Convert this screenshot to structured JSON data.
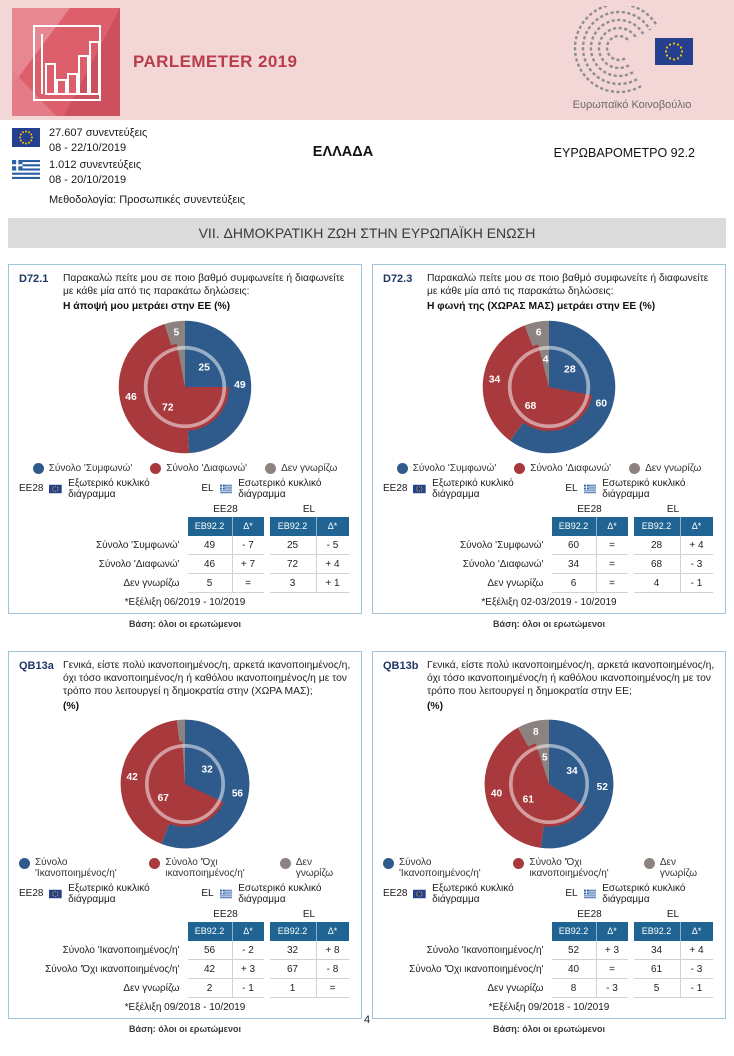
{
  "header": {
    "title": "PARLEMETER 2019",
    "ep_caption": "Ευρωπαϊκό Κοινοβούλιο"
  },
  "meta": {
    "eu_interviews": "27.607 συνεντεύξεις",
    "eu_dates": "08 - 22/10/2019",
    "country_interviews": "1.012 συνεντεύξεις",
    "country_dates": "08 - 20/10/2019",
    "methodology": "Μεθοδολογία: Προσωπικές συνεντεύξεις",
    "country": "ΕΛΛΑΔΑ",
    "survey": "ΕΥΡΩΒΑΡΟΜΕΤΡΟ 92.2"
  },
  "section_title": "VII. ΔΗΜΟΚΡΑΤΙΚΗ ΖΩΗ ΣΤΗΝ ΕΥΡΩΠΑΪΚΗ ΕΝΩΣΗ",
  "table_headers": {
    "ee28": "EE28",
    "el": "EL",
    "eb": "EB92.2",
    "delta": "Δ*"
  },
  "ring_legend": {
    "ee28": "EE28",
    "outer": "Εξωτερικό κυκλικό διάγραμμα",
    "el": "EL",
    "inner": "Εσωτερικό κυκλικό διάγραμμα"
  },
  "base_note": "Βάση: όλοι οι ερωτώμενοι",
  "page_number": "4",
  "icons": {
    "eu_flag": "eu-flag-icon",
    "greece_flag": "greece-flag-icon",
    "ep_logo": "european-parliament-logo",
    "chart_logo": "bar-chart-logo"
  },
  "colors": {
    "agree_blue": "#2e5a8c",
    "disagree_red": "#a8393c",
    "dontknow_gray": "#8c8280",
    "table_header_teal": "#1f6492",
    "panel_border": "#a0c4d8",
    "header_pink": "#f3d7d7",
    "logo_red": "#dd5f6c",
    "title_red": "#b93c4b",
    "banner_gray": "#dbdbdb"
  },
  "panels": [
    {
      "id": "D72.1",
      "question": "Παρακαλώ πείτε μου σε ποιο βαθμό συμφωνείτε ή διαφωνείτε με κάθε μία από τις παρακάτω δηλώσεις:",
      "subtitle": "Η άποψή μου μετράει στην ΕΕ  (%)",
      "legend": [
        "Σύνολο 'Συμφωνώ'",
        "Σύνολο 'Διαφωνώ'",
        "Δεν γνωρίζω"
      ],
      "rows": [
        {
          "label": "Σύνολο 'Συμφωνώ'",
          "ee28": "49",
          "ee28_delta": "- 7",
          "el": "25",
          "el_delta": "- 5"
        },
        {
          "label": "Σύνολο 'Διαφωνώ'",
          "ee28": "46",
          "ee28_delta": "+ 7",
          "el": "72",
          "el_delta": "+ 4"
        },
        {
          "label": "Δεν γνωρίζω",
          "ee28": "5",
          "ee28_delta": "=",
          "el": "3",
          "el_delta": "+ 1"
        }
      ],
      "footnote": "*Εξέλιξη 06/2019 - 10/2019"
    },
    {
      "id": "D72.3",
      "question": "Παρακαλώ πείτε μου σε ποιο βαθμό συμφωνείτε ή διαφωνείτε με κάθε μία από τις παρακάτω δηλώσεις:",
      "subtitle": "Η φωνή της (ΧΩΡΑΣ ΜΑΣ) μετράει στην ΕΕ  (%)",
      "legend": [
        "Σύνολο 'Συμφωνώ'",
        "Σύνολο 'Διαφωνώ'",
        "Δεν γνωρίζω"
      ],
      "rows": [
        {
          "label": "Σύνολο 'Συμφωνώ'",
          "ee28": "60",
          "ee28_delta": "=",
          "el": "28",
          "el_delta": "+ 4"
        },
        {
          "label": "Σύνολο 'Διαφωνώ'",
          "ee28": "34",
          "ee28_delta": "=",
          "el": "68",
          "el_delta": "- 3"
        },
        {
          "label": "Δεν γνωρίζω",
          "ee28": "6",
          "ee28_delta": "=",
          "el": "4",
          "el_delta": "- 1"
        }
      ],
      "footnote": "*Εξέλιξη 02-03/2019 - 10/2019"
    },
    {
      "id": "QB13a",
      "question": "Γενικά, είστε πολύ ικανοποιημένος/η, αρκετά ικανοποιημένος/η, όχι τόσο ικανοποιημένος/η ή καθόλου ικανοποιημένος/η με τον τρόπο που λειτουργεί η δημοκρατία στην (ΧΩΡΑ ΜΑΣ);",
      "subtitle": "(%)",
      "legend": [
        "Σύνολο 'Ικανοποιημένος/η'",
        "Σύνολο 'Όχι ικανοποιημένος/η'",
        "Δεν γνωρίζω"
      ],
      "rows": [
        {
          "label": "Σύνολο 'Ικανοποιημένος/η'",
          "ee28": "56",
          "ee28_delta": "- 2",
          "el": "32",
          "el_delta": "+ 8"
        },
        {
          "label": "Σύνολο 'Όχι ικανοποιημένος/η'",
          "ee28": "42",
          "ee28_delta": "+ 3",
          "el": "67",
          "el_delta": "- 8"
        },
        {
          "label": "Δεν γνωρίζω",
          "ee28": "2",
          "ee28_delta": "- 1",
          "el": "1",
          "el_delta": "="
        }
      ],
      "footnote": "*Εξέλιξη 09/2018 - 10/2019"
    },
    {
      "id": "QB13b",
      "question": "Γενικά, είστε πολύ ικανοποιημένος/η, αρκετά ικανοποιημένος/η, όχι τόσο ικανοποιημένος/η ή καθόλου ικανοποιημένος/η με τον τρόπο που λειτουργεί η δημοκρατία στην ΕΕ;",
      "subtitle": "(%)",
      "legend": [
        "Σύνολο 'Ικανοποιημένος/η'",
        "Σύνολο 'Όχι ικανοποιημένος/η'",
        "Δεν γνωρίζω"
      ],
      "rows": [
        {
          "label": "Σύνολο 'Ικανοποιημένος/η'",
          "ee28": "52",
          "ee28_delta": "+ 3",
          "el": "34",
          "el_delta": "+ 4"
        },
        {
          "label": "Σύνολο 'Όχι ικανοποιημένος/η'",
          "ee28": "40",
          "ee28_delta": "=",
          "el": "61",
          "el_delta": "- 3"
        },
        {
          "label": "Δεν γνωρίζω",
          "ee28": "8",
          "ee28_delta": "- 3",
          "el": "5",
          "el_delta": "- 1"
        }
      ],
      "footnote": "*Εξέλιξη 09/2018 - 10/2019"
    }
  ],
  "chart_data": [
    {
      "type": "pie",
      "panel": "D72.1",
      "title": "Η άποψή μου μετράει στην ΕΕ (%)",
      "categories": [
        "Σύνολο 'Συμφωνώ'",
        "Σύνολο 'Διαφωνώ'",
        "Δεν γνωρίζω"
      ],
      "series": [
        {
          "name": "EE28 — εξωτερικό κυκλικό διάγραμμα",
          "values": [
            49,
            46,
            5
          ]
        },
        {
          "name": "EL — εσωτερικό κυκλικό διάγραμμα",
          "values": [
            25,
            72,
            3
          ]
        }
      ],
      "colors": [
        "#2e5a8c",
        "#a8393c",
        "#8c8280"
      ],
      "legend_position": "bottom"
    },
    {
      "type": "pie",
      "panel": "D72.3",
      "title": "Η φωνή της (ΧΩΡΑΣ ΜΑΣ) μετράει στην ΕΕ (%)",
      "categories": [
        "Σύνολο 'Συμφωνώ'",
        "Σύνολο 'Διαφωνώ'",
        "Δεν γνωρίζω"
      ],
      "series": [
        {
          "name": "EE28 — εξωτερικό κυκλικό διάγραμμα",
          "values": [
            60,
            34,
            6
          ]
        },
        {
          "name": "EL — εσωτερικό κυκλικό διάγραμμα",
          "values": [
            28,
            68,
            4
          ]
        }
      ],
      "colors": [
        "#2e5a8c",
        "#a8393c",
        "#8c8280"
      ],
      "legend_position": "bottom"
    },
    {
      "type": "pie",
      "panel": "QB13a",
      "title": "Ικανοποίηση από τη λειτουργία της δημοκρατίας στην (ΧΩΡΑ ΜΑΣ) (%)",
      "categories": [
        "Σύνολο 'Ικανοποιημένος/η'",
        "Σύνολο 'Όχι ικανοποιημένος/η'",
        "Δεν γνωρίζω"
      ],
      "series": [
        {
          "name": "EE28 — εξωτερικό κυκλικό διάγραμμα",
          "values": [
            56,
            42,
            2
          ]
        },
        {
          "name": "EL — εσωτερικό κυκλικό διάγραμμα",
          "values": [
            32,
            67,
            1
          ]
        }
      ],
      "colors": [
        "#2e5a8c",
        "#a8393c",
        "#8c8280"
      ],
      "legend_position": "bottom"
    },
    {
      "type": "pie",
      "panel": "QB13b",
      "title": "Ικανοποίηση από τη λειτουργία της δημοκρατίας στην ΕΕ (%)",
      "categories": [
        "Σύνολο 'Ικανοποιημένος/η'",
        "Σύνολο 'Όχι ικανοποιημένος/η'",
        "Δεν γνωρίζω"
      ],
      "series": [
        {
          "name": "EE28 — εξωτερικό κυκλικό διάγραμμα",
          "values": [
            52,
            40,
            8
          ]
        },
        {
          "name": "EL — εσωτερικό κυκλικό διάγραμμα",
          "values": [
            34,
            61,
            5
          ]
        }
      ],
      "colors": [
        "#2e5a8c",
        "#a8393c",
        "#8c8280"
      ],
      "legend_position": "bottom"
    }
  ]
}
